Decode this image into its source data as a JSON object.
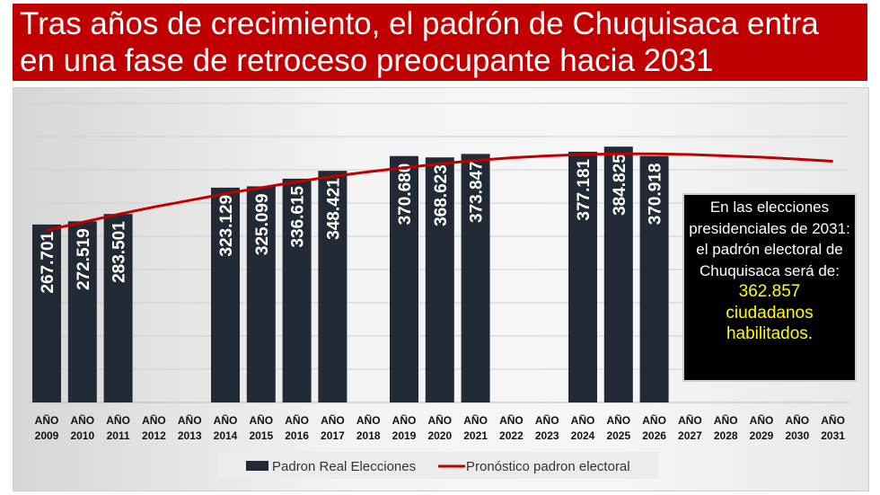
{
  "title": "Tras años de crecimiento, el padrón de Chuquisaca entra en una fase de retroceso preocupante hacia 2031",
  "note": {
    "text": "En las elecciones presidenciales de 2031: el padrón electoral de Chuquisaca será de:",
    "value": "362.857",
    "unit": "ciudadanos habilitados",
    "period": "."
  },
  "colors": {
    "bar": "#222a35",
    "line": "#c00000",
    "title_bg": "#c00000"
  },
  "chart_data": {
    "type": "bar",
    "title": "Tras años de crecimiento, el padrón de Chuquisaca entra en una fase de retroceso preocupante hacia 2031",
    "categories": [
      "AÑO 2009",
      "AÑO 2010",
      "AÑO 2011",
      "AÑO 2012",
      "AÑO 2013",
      "AÑO 2014",
      "AÑO 2015",
      "AÑO 2016",
      "AÑO 2017",
      "AÑO 2018",
      "AÑO 2019",
      "AÑO 2020",
      "AÑO 2021",
      "AÑO 2022",
      "AÑO 2023",
      "AÑO 2024",
      "AÑO 2025",
      "AÑO 2026",
      "AÑO 2027",
      "AÑO 2028",
      "AÑO 2029",
      "AÑO 2030",
      "AÑO 2031"
    ],
    "series": [
      {
        "name": "Padron Real Elecciones",
        "type": "bar",
        "values": [
          267701,
          272519,
          283501,
          null,
          null,
          323129,
          325099,
          336615,
          348421,
          null,
          370680,
          368623,
          373847,
          null,
          null,
          377181,
          384825,
          370918,
          null,
          null,
          null,
          null,
          null
        ],
        "labels": [
          "267.701",
          "272.519",
          "283.501",
          null,
          null,
          "323.129",
          "325.099",
          "336.615",
          "348.421",
          null,
          "370.680",
          "368.623",
          "373.847",
          null,
          null,
          "377.181",
          "384.825",
          "370.918",
          null,
          null,
          null,
          null,
          null
        ]
      },
      {
        "name": "Pronóstico padron electoral",
        "type": "line",
        "values": [
          259000,
          271000,
          283000,
          294000,
          304000,
          314000,
          323000,
          332000,
          340000,
          347000,
          353000,
          359000,
          364000,
          368000,
          371000,
          373000,
          374000,
          374000,
          373000,
          371000,
          369000,
          366000,
          362857
        ]
      }
    ],
    "xlabel": "",
    "ylabel": "",
    "ylim": [
      0,
      450000
    ],
    "grid": true,
    "legend": "bottom"
  }
}
